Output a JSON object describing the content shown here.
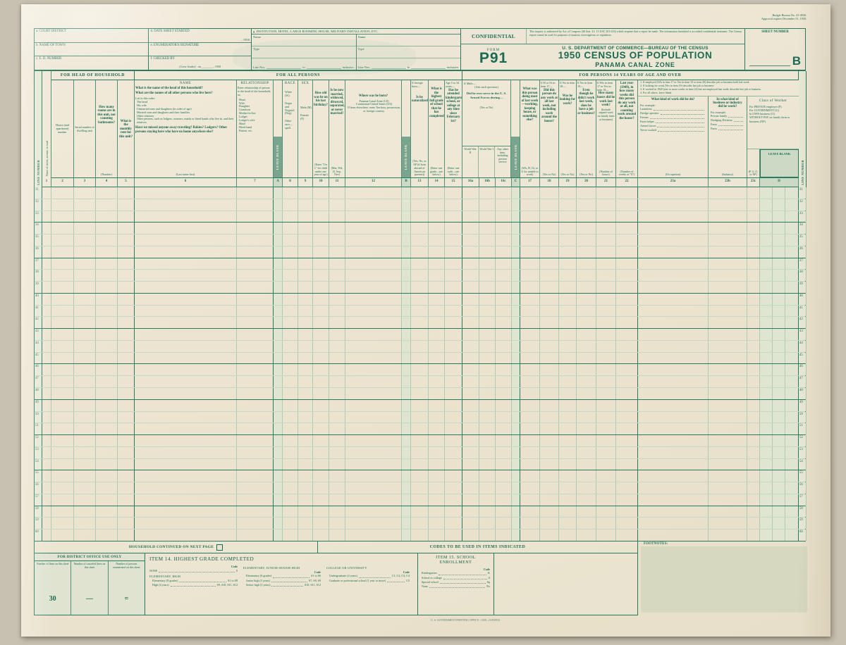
{
  "colors": {
    "ink": "#1a6b54",
    "paper": "#ece4d0",
    "leave_blank_fill": "#79a48d",
    "shade": "#dfe5d1"
  },
  "corner": {
    "line1": "Budget Bureau No. 41-4930.",
    "line2": "Approval expires December 31, 1950."
  },
  "admin": {
    "a": "a. COURT DISTRICT",
    "b": "b. NAME OF TOWN",
    "c": "c. E. D. NUMBER",
    "d": "d. DATE SHEET STARTED",
    "d_suffix": ", 1950",
    "e": "e. ENUMERATOR'S SIGNATURE",
    "f": "f. CHECKED BY",
    "f_sub": "(Crew leader)",
    "f_on": "on",
    "f_suffix": ", 1950",
    "g": "g. INSTITUTION, HOTEL, LARGE ROOMING HOUSE, MILITARY INSTALLATION, ETC.",
    "g_name": "Name",
    "g_type": "Type",
    "g_line": "Line Nos.",
    "g_to": "to",
    "g_incl": "inclusive."
  },
  "masthead": {
    "confidential": "CONFIDENTIAL",
    "authorization": "This inquiry is authorized by Act of Congress (46 Stat. 21; 13 USC 201-216) which requires that a report be made.  The information furnished is accorded confidential treatment.  The Census report cannot be used for purposes of taxation, investigation, or regulation.",
    "form_label": "FORM",
    "form_number": "P91",
    "dept": "U. S. DEPARTMENT OF COMMERCE—BUREAU OF THE CENSUS",
    "title": "1950 CENSUS OF POPULATION",
    "subtitle": "PANAMA CANAL ZONE",
    "sheet_label": "SHEET NUMBER",
    "sheet_letter": "B"
  },
  "bands": {
    "head": "FOR HEAD OF HOUSEHOLD",
    "all": "FOR ALL PERSONS",
    "fourteen": "FOR PERSONS 14 YEARS OF AGE AND OVER"
  },
  "columns": {
    "line_number": "LINE NUMBER",
    "street": "Name of street, avenue, or road",
    "leave_blank": "LEAVE BLANK",
    "c2": {
      "label": "House (and apartment) number"
    },
    "c3": {
      "label": "Serial number of dwelling unit"
    },
    "c4": {
      "q": "How many rooms are in this unit, not counting bathrooms?",
      "note": "(Number)"
    },
    "c5": {
      "q": "What is the monthly rent for this unit?"
    },
    "name": {
      "title": "NAME",
      "q1": "What is the name of the head of this household?",
      "q2": "What are the names of all other persons who live here?",
      "list_label": "List in this order:",
      "list": [
        "The head",
        "His wife",
        "Unmarried sons and daughters (in order of age)",
        "Married sons and daughters and their families",
        "Other relatives",
        "Other persons, such as lodgers, roomers, maids or hired hands who live in, and their relatives"
      ],
      "q3": "Have we missed anyone away traveling?  Babies?  Lodgers?  Other persons staying here who have no home anywhere else?",
      "note": "(Last name first)"
    },
    "rel": {
      "title": "RELATIONSHIP",
      "intro": "Enter relationship of person to the head of the household, as:",
      "list": [
        "Head",
        "Wife",
        "Daughter",
        "Grandson",
        "Mother-in-law",
        "Lodger",
        "Lodger's wife",
        "Maid",
        "Hired hand",
        "Patient, etc."
      ]
    },
    "race": {
      "title": "RACE",
      "list": [
        "White (W)",
        "Negro and Negroid (Neg)",
        "Other race—spell."
      ]
    },
    "sex": {
      "title": "SEX",
      "list": [
        "Male (M)",
        "Female (F)"
      ]
    },
    "age": {
      "q": "How old was he on his last birthday?",
      "note": "(Enter \"Un 1\" for child under one year of age)"
    },
    "marital": {
      "q": "Is he now married, widowed, divorced, separated, or never married?",
      "note": "(Mar, Wd, D, Sep, Nev)"
    },
    "born": {
      "q": "Where was he born?",
      "list": [
        "Panama Canal Zone (CZ)",
        "Continental United States (US)",
        "If born elsewhere, enter Territory, possession, or foreign country."
      ]
    },
    "natz": {
      "pre": "If foreign born—",
      "q": "Is he naturalized?",
      "note": "(Yes, No, or AP (if born abroad of American parents))"
    },
    "grade": {
      "q": "What is the highest full grade of school that he has completed?",
      "note": "(Enter one grade—see below)"
    },
    "attend": {
      "pre": "Age 5 to 34 years—",
      "q": "Has he attended kindergarten, school, or college at any time since February 1st?",
      "note": "(Enter one code—see below)"
    },
    "af": {
      "pre": "If Male—",
      "ask": "(Ask each question)",
      "q": "Did he ever serve in the U. S. Armed Forces during—",
      "note": "(Yes or No)",
      "sub": [
        "World War II",
        "World War I",
        "Any other time, including present service"
      ]
    },
    "c17": {
      "q": "What was this person doing most of last week—working, keeping house, or something else?",
      "note": "(Wk, H, Ot, or U for unable to work)"
    },
    "c18": {
      "pre": "If H or Ot in item 17—",
      "q": "Did this person do any work at all last week, not including work around the house?",
      "note": "(Yes or No)"
    },
    "c19": {
      "pre": "If No in item 18—",
      "q": "Was he looking for work?",
      "note": "(Yes or No)"
    },
    "c20": {
      "pre": "If No in item 19—",
      "q": "Even though he didn't work last week, does he have a job or business?",
      "note": "(Yes or No)"
    },
    "c21": {
      "pre": "If Wk in item 17 or Yes in item 18—",
      "q": "How many hours did he work last week?",
      "mid": "(Include unpaid work on family farm or business)",
      "note": "(Number of hours)"
    },
    "c22": {
      "q": "Last year (1949), in how many weeks did this person do any work at all, not counting work around the house?",
      "note": "(Number of weeks or \"0\")"
    },
    "jobs_instructions": [
      "1. If employed (Wk in item 17 or Yes in item 18 or item 20) describe job or business held last week",
      "2. If looking for work (Yes in item 19) describe last job or business",
      "3. If worked in 1949 (one or more weeks in item 22) but not employed last week, describe last job or business",
      "4. For all others, leave blank"
    ],
    "job": {
      "q": "What kind of work did he do?",
      "eg": "For example:",
      "examples": [
        "Laundress",
        "Dredge operator",
        "Farmer",
        "Farm helper",
        "Armed forces",
        "Never worked"
      ],
      "note": "(Occupation)"
    },
    "industry": {
      "q": "In what kind of business or industry did he work?",
      "eg": "For example:",
      "examples": [
        "Private family",
        "Dredging Division",
        "Farm",
        "Farm"
      ],
      "note": "(Industry)"
    },
    "worker": {
      "title": "Class of Worker",
      "list": [
        "For PRIVATE employer (P)",
        "For GOVERNMENT (G)",
        "In OWN business (O)",
        "WITHOUT PAY on family farm or business (NP)"
      ],
      "tag": "(P, G, O, or NP)"
    }
  },
  "table": {
    "col_numbers": [
      "1",
      "2",
      "3",
      "4",
      "5",
      "6",
      "7",
      "A",
      "8",
      "9",
      "10",
      "11",
      "12",
      "B",
      "13",
      "14",
      "15",
      "16a",
      "16b",
      "16c",
      "C",
      "17",
      "18",
      "19",
      "20",
      "21",
      "22",
      "23a",
      "23b",
      "23c",
      "D"
    ],
    "line_start": 31,
    "line_end": 60
  },
  "bottom": {
    "household": "HOUSEHOLD CONTINUED ON NEXT PAGE",
    "codes_banner": "CODES TO BE USED IN ITEMS INDICATED",
    "footnotes": "FOOTNOTES:",
    "district": {
      "title": "FOR DISTRICT OFFICE USE ONLY",
      "cols": [
        {
          "label": "Number of lines on this sheet",
          "value": "30"
        },
        {
          "label": "Number of canceled lines on this sheet",
          "value": "—"
        },
        {
          "label": "Number of persons enumerated on this sheet",
          "value": "="
        }
      ]
    },
    "item14": {
      "title": "ITEM 14.  HIGHEST GRADE COMPLETED",
      "code_label": "Code",
      "none": {
        "l": "NONE",
        "c": "0"
      },
      "g1": "ELEMENTARY, HIGH",
      "g1_rows": [
        {
          "l": "Elementary (8 grades)",
          "c": "S1 to S8"
        },
        {
          "l": "High (4 years)",
          "c": "S9, S10, S11, S12"
        }
      ],
      "g2": "ELEMENTARY, JUNIOR-SENIOR HIGH",
      "g2_rows": [
        {
          "l": "Elementary (6 grades)",
          "c": "S1 to S6"
        },
        {
          "l": "Junior high (3 years)",
          "c": "S7, S8, S9"
        },
        {
          "l": "Senior high (3 years)",
          "c": "S10, S11, S12"
        }
      ],
      "g3": "COLLEGE OR UNIVERSITY",
      "g3_rows": [
        {
          "l": "Undergraduate (4 years)",
          "c": "C1, C2, C3, C4"
        },
        {
          "l": "Graduate or professional school (1 year or more)",
          "c": "C5"
        }
      ]
    },
    "item15": {
      "title": "ITEM 15.  SCHOOL ENROLLMENT",
      "code_label": "Code",
      "rows": [
        {
          "l": "Kindergarten",
          "c": "K"
        },
        {
          "l": "School or college",
          "c": "S"
        },
        {
          "l": "Special school",
          "c": "Sp"
        },
        {
          "l": "None",
          "c": "No"
        }
      ]
    },
    "print": "U. S. GOVERNMENT PRINTING OFFICE : 1949—O-850918"
  }
}
